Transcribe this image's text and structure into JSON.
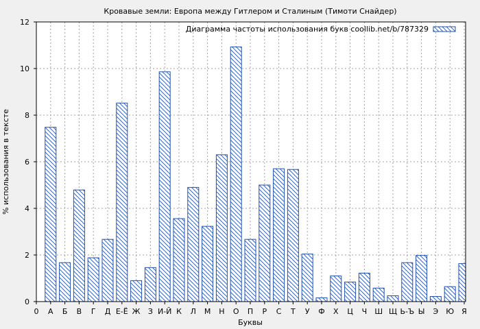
{
  "chart_data": {
    "type": "bar",
    "title": "Кровавые земли: Европа между Гитлером и Сталиным (Тимоти Снайдер)",
    "xlabel": "Буквы",
    "ylabel": "% использования в тексте",
    "ylim": [
      0,
      12
    ],
    "yticks": [
      0,
      2,
      4,
      6,
      8,
      10,
      12
    ],
    "grid": true,
    "legend": {
      "position": "top-right",
      "label": "Диаграмма частоты использования букв coollib.net/b/787329"
    },
    "colors": {
      "bar_stroke": "#2050b0",
      "hatch": "#2050b0",
      "grid": "#a0a0a0",
      "background": "#f0f0f0",
      "plot_bg": "#ffffff"
    },
    "categories": [
      "0",
      "А",
      "Б",
      "В",
      "Г",
      "Д",
      "Е-Ё",
      "Ж",
      "З",
      "И-Й",
      "К",
      "Л",
      "М",
      "Н",
      "О",
      "П",
      "Р",
      "С",
      "Т",
      "У",
      "Ф",
      "Х",
      "Ц",
      "Ч",
      "Ш",
      "Щ",
      "Ь-Ъ",
      "Ы",
      "Э",
      "Ю",
      "Я"
    ],
    "values": [
      0,
      7.48,
      1.67,
      4.79,
      1.88,
      2.67,
      8.52,
      0.9,
      1.46,
      9.86,
      3.56,
      4.9,
      3.23,
      6.3,
      10.93,
      2.67,
      5.0,
      5.7,
      5.67,
      2.04,
      0.16,
      1.1,
      0.84,
      1.22,
      0.58,
      0.25,
      1.67,
      1.98,
      0.22,
      0.64,
      1.63
    ]
  }
}
